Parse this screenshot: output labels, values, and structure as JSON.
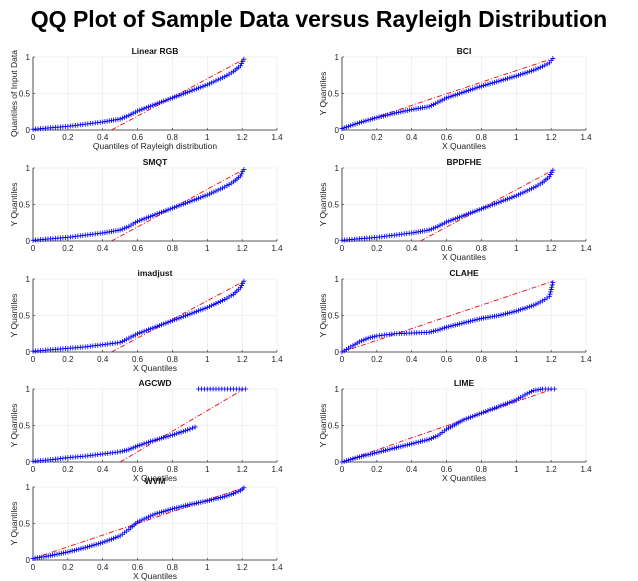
{
  "figure_title": "QQ Plot of Sample Data versus Rayleigh Distribution",
  "colors": {
    "data": "#0000ff",
    "reference": "#ff0000",
    "axis": "#262626",
    "grid": "#e6e6e6"
  },
  "chart_data": [
    {
      "type": "scatter",
      "title": "Linear RGB",
      "xlabel": "Quantiles of Rayleigh distribution",
      "ylabel": "Quantiles of Input Data",
      "xlim": [
        0,
        1.4
      ],
      "ylim": [
        0,
        1
      ],
      "xticks": [
        "0",
        "0.2",
        "0.4",
        "0.6",
        "0.8",
        "1",
        "1.2",
        "1.4"
      ],
      "yticks": [
        "0",
        "0.5",
        "1"
      ],
      "grid": true,
      "series": [
        {
          "role": "sample",
          "marker": "+",
          "x": [
            0,
            0.1,
            0.2,
            0.3,
            0.4,
            0.5,
            0.55,
            0.6,
            0.7,
            0.8,
            0.9,
            1.0,
            1.1,
            1.15,
            1.19,
            1.21
          ],
          "y": [
            0.01,
            0.03,
            0.05,
            0.08,
            0.11,
            0.15,
            0.2,
            0.26,
            0.35,
            0.44,
            0.53,
            0.62,
            0.73,
            0.8,
            0.88,
            0.97
          ]
        },
        {
          "role": "reference",
          "x": [
            0.45,
            1.21
          ],
          "y": [
            0.0,
            0.97
          ]
        }
      ]
    },
    {
      "type": "scatter",
      "title": "BCI",
      "xlabel": "X Quantiles",
      "ylabel": "Y Quantiles",
      "xlim": [
        0,
        1.4
      ],
      "ylim": [
        0,
        1
      ],
      "xticks": [
        "0",
        "0.2",
        "0.4",
        "0.6",
        "0.8",
        "1",
        "1.2",
        "1.4"
      ],
      "yticks": [
        "0",
        "0.5",
        "1"
      ],
      "grid": true,
      "series": [
        {
          "role": "sample",
          "marker": "+",
          "x": [
            0,
            0.1,
            0.2,
            0.3,
            0.4,
            0.5,
            0.55,
            0.6,
            0.7,
            0.8,
            0.9,
            1.0,
            1.1,
            1.15,
            1.19,
            1.21
          ],
          "y": [
            0.02,
            0.1,
            0.17,
            0.23,
            0.28,
            0.32,
            0.38,
            0.44,
            0.52,
            0.6,
            0.67,
            0.74,
            0.82,
            0.87,
            0.92,
            0.98
          ]
        },
        {
          "role": "reference",
          "x": [
            0,
            1.21
          ],
          "y": [
            0.02,
            0.98
          ]
        }
      ]
    },
    {
      "type": "scatter",
      "title": "SMQT",
      "xlabel": "",
      "ylabel": "Y Quantiles",
      "xlim": [
        0,
        1.4
      ],
      "ylim": [
        0,
        1
      ],
      "xticks": [
        "0",
        "0.2",
        "0.4",
        "0.6",
        "0.8",
        "1",
        "1.2",
        "1.4"
      ],
      "yticks": [
        "0",
        "0.5",
        "1"
      ],
      "grid": true,
      "series": [
        {
          "role": "sample",
          "marker": "+",
          "x": [
            0,
            0.1,
            0.2,
            0.3,
            0.4,
            0.5,
            0.55,
            0.6,
            0.7,
            0.8,
            0.9,
            1.0,
            1.1,
            1.15,
            1.19,
            1.21
          ],
          "y": [
            0.01,
            0.03,
            0.05,
            0.08,
            0.11,
            0.15,
            0.2,
            0.27,
            0.36,
            0.45,
            0.54,
            0.63,
            0.74,
            0.81,
            0.89,
            0.98
          ]
        },
        {
          "role": "reference",
          "x": [
            0.45,
            1.21
          ],
          "y": [
            0.0,
            0.98
          ]
        }
      ]
    },
    {
      "type": "scatter",
      "title": "BPDFHE",
      "xlabel": "X Quantiles",
      "ylabel": "Y Quantiles",
      "xlim": [
        0,
        1.4
      ],
      "ylim": [
        0,
        1
      ],
      "xticks": [
        "0",
        "0.2",
        "0.4",
        "0.6",
        "0.8",
        "1",
        "1.2",
        "1.4"
      ],
      "yticks": [
        "0",
        "0.5",
        "1"
      ],
      "grid": true,
      "series": [
        {
          "role": "sample",
          "marker": "+",
          "x": [
            0,
            0.1,
            0.2,
            0.3,
            0.4,
            0.5,
            0.55,
            0.6,
            0.7,
            0.8,
            0.9,
            1.0,
            1.1,
            1.15,
            1.19,
            1.21
          ],
          "y": [
            0.01,
            0.03,
            0.05,
            0.08,
            0.11,
            0.15,
            0.2,
            0.26,
            0.35,
            0.44,
            0.53,
            0.62,
            0.73,
            0.8,
            0.88,
            0.97
          ]
        },
        {
          "role": "reference",
          "x": [
            0.45,
            1.21
          ],
          "y": [
            0.0,
            0.97
          ]
        }
      ]
    },
    {
      "type": "scatter",
      "title": "imadjust",
      "xlabel": "X Quantiles",
      "ylabel": "Y Quantiles",
      "xlim": [
        0,
        1.4
      ],
      "ylim": [
        0,
        1
      ],
      "xticks": [
        "0",
        "0.2",
        "0.4",
        "0.6",
        "0.8",
        "1",
        "1.2",
        "1.4"
      ],
      "yticks": [
        "0",
        "0.5",
        "1"
      ],
      "grid": true,
      "series": [
        {
          "role": "sample",
          "marker": "+",
          "x": [
            0,
            0.1,
            0.2,
            0.3,
            0.4,
            0.5,
            0.55,
            0.6,
            0.7,
            0.8,
            0.9,
            1.0,
            1.1,
            1.15,
            1.19,
            1.21
          ],
          "y": [
            0.01,
            0.03,
            0.05,
            0.07,
            0.1,
            0.13,
            0.19,
            0.25,
            0.34,
            0.43,
            0.52,
            0.61,
            0.72,
            0.79,
            0.88,
            0.97
          ]
        },
        {
          "role": "reference",
          "x": [
            0.45,
            1.21
          ],
          "y": [
            0.0,
            0.97
          ]
        }
      ]
    },
    {
      "type": "scatter",
      "title": "CLAHE",
      "xlabel": "",
      "ylabel": "Y Quantiles",
      "xlim": [
        0,
        1.4
      ],
      "ylim": [
        0,
        1
      ],
      "xticks": [
        "0",
        "0.2",
        "0.4",
        "0.6",
        "0.8",
        "1",
        "1.2",
        "1.4"
      ],
      "yticks": [
        "0",
        "0.5",
        "1"
      ],
      "grid": true,
      "series": [
        {
          "role": "sample",
          "marker": "+",
          "x": [
            0,
            0.05,
            0.1,
            0.15,
            0.2,
            0.3,
            0.4,
            0.5,
            0.55,
            0.6,
            0.7,
            0.8,
            0.9,
            1.0,
            1.1,
            1.15,
            1.19,
            1.21
          ],
          "y": [
            0.0,
            0.07,
            0.14,
            0.19,
            0.22,
            0.25,
            0.26,
            0.27,
            0.3,
            0.34,
            0.4,
            0.46,
            0.5,
            0.56,
            0.64,
            0.7,
            0.76,
            0.95
          ]
        },
        {
          "role": "reference",
          "x": [
            0,
            1.21
          ],
          "y": [
            0.0,
            0.97
          ]
        }
      ]
    },
    {
      "type": "scatter",
      "title": "AGCWD",
      "xlabel": "X Quantiles",
      "ylabel": "Y Quantiles",
      "xlim": [
        0,
        1.4
      ],
      "ylim": [
        0,
        1
      ],
      "xticks": [
        "0",
        "0.2",
        "0.4",
        "0.6",
        "0.8",
        "1",
        "1.2",
        "1.4"
      ],
      "yticks": [
        "0",
        "0.5",
        "1"
      ],
      "grid": true,
      "series": [
        {
          "role": "sample",
          "marker": "+",
          "x": [
            0,
            0.1,
            0.2,
            0.3,
            0.4,
            0.5,
            0.55,
            0.6,
            0.7,
            0.8,
            0.9,
            0.93,
            0.95,
            1.0,
            1.05,
            1.1,
            1.15,
            1.2,
            1.22
          ],
          "y": [
            0.01,
            0.03,
            0.06,
            0.08,
            0.11,
            0.14,
            0.17,
            0.22,
            0.3,
            0.37,
            0.45,
            0.48,
            1.0,
            1.0,
            1.0,
            1.0,
            1.0,
            1.0,
            1.0
          ]
        },
        {
          "role": "reference",
          "x": [
            0.5,
            1.21
          ],
          "y": [
            0.0,
            1.0
          ]
        }
      ]
    },
    {
      "type": "scatter",
      "title": "LIME",
      "xlabel": "X Quantiles",
      "ylabel": "Y Quantiles",
      "xlim": [
        0,
        1.4
      ],
      "ylim": [
        0,
        1
      ],
      "xticks": [
        "0",
        "0.2",
        "0.4",
        "0.6",
        "0.8",
        "1",
        "1.2",
        "1.4"
      ],
      "yticks": [
        "0",
        "0.5",
        "1"
      ],
      "grid": true,
      "series": [
        {
          "role": "sample",
          "marker": "+",
          "x": [
            0,
            0.1,
            0.2,
            0.3,
            0.4,
            0.5,
            0.55,
            0.6,
            0.7,
            0.8,
            0.9,
            1.0,
            1.05,
            1.1,
            1.15,
            1.2,
            1.22
          ],
          "y": [
            0.0,
            0.07,
            0.13,
            0.19,
            0.25,
            0.31,
            0.36,
            0.45,
            0.58,
            0.67,
            0.76,
            0.85,
            0.92,
            0.98,
            1.0,
            1.0,
            1.0
          ]
        },
        {
          "role": "reference",
          "x": [
            0,
            1.21
          ],
          "y": [
            0.0,
            1.0
          ]
        }
      ]
    },
    {
      "type": "scatter",
      "title": "WVM",
      "xlabel": "X Quantiles",
      "ylabel": "Y Quantiles",
      "xlim": [
        0,
        1.4
      ],
      "ylim": [
        0,
        1
      ],
      "xticks": [
        "0",
        "0.2",
        "0.4",
        "0.6",
        "0.8",
        "1",
        "1.2",
        "1.4"
      ],
      "yticks": [
        "0",
        "0.5",
        "1"
      ],
      "grid": true,
      "series": [
        {
          "role": "sample",
          "marker": "+",
          "x": [
            0,
            0.1,
            0.2,
            0.3,
            0.4,
            0.5,
            0.55,
            0.6,
            0.7,
            0.8,
            0.9,
            1.0,
            1.1,
            1.15,
            1.19,
            1.21
          ],
          "y": [
            0.02,
            0.06,
            0.11,
            0.17,
            0.24,
            0.33,
            0.42,
            0.52,
            0.63,
            0.7,
            0.76,
            0.81,
            0.87,
            0.91,
            0.95,
            0.99
          ]
        },
        {
          "role": "reference",
          "x": [
            0,
            1.21
          ],
          "y": [
            0.02,
            0.99
          ]
        }
      ]
    }
  ]
}
